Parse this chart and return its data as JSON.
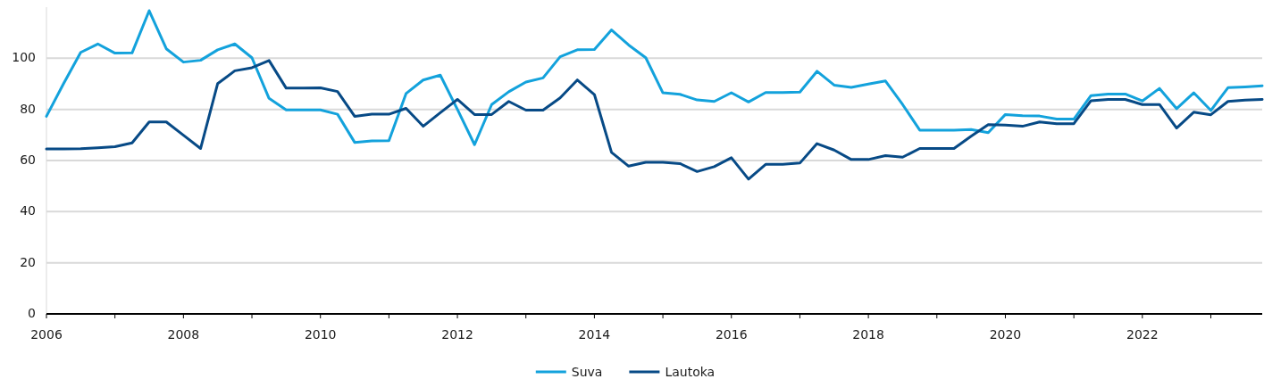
{
  "chart_data": {
    "type": "line",
    "x": [
      2006,
      2006.25,
      2006.5,
      2006.75,
      2007,
      2007.25,
      2007.5,
      2007.75,
      2008,
      2008.25,
      2008.5,
      2008.75,
      2009,
      2009.25,
      2009.5,
      2009.75,
      2010,
      2010.25,
      2010.5,
      2010.75,
      2011,
      2011.25,
      2011.5,
      2011.75,
      2012,
      2012.25,
      2012.5,
      2012.75,
      2013,
      2013.25,
      2013.5,
      2013.75,
      2014,
      2014.25,
      2014.5,
      2014.75,
      2015,
      2015.25,
      2015.5,
      2015.75,
      2016,
      2016.25,
      2016.5,
      2016.75,
      2017,
      2017.25,
      2017.5,
      2017.75,
      2018,
      2018.25,
      2018.5,
      2018.75,
      2019,
      2019.25,
      2019.5,
      2019.75,
      2020,
      2020.25,
      2020.5,
      2020.75,
      2021,
      2021.25,
      2021.5,
      2021.75,
      2022,
      2022.25,
      2022.5,
      2022.75,
      2023,
      2023.25,
      2023.5,
      2023.75
    ],
    "xlim": [
      2006,
      2023.75
    ],
    "xticks": [
      2006,
      {
        "value": 2007,
        "label": null
      },
      2008,
      {
        "value": 2009,
        "label": null
      },
      2010,
      {
        "value": 2011,
        "label": null
      },
      2012,
      {
        "value": 2013,
        "label": null
      },
      2014,
      {
        "value": 2015,
        "label": null
      },
      2016,
      {
        "value": 2017,
        "label": null
      },
      2018,
      {
        "value": 2019,
        "label": null
      },
      2020,
      {
        "value": 2021,
        "label": null
      },
      2022,
      {
        "value": 2023,
        "label": null
      }
    ],
    "ylim": [
      0,
      120
    ],
    "yticks": [
      0,
      20,
      40,
      60,
      80,
      100
    ],
    "grid": "y",
    "legend": "bottom",
    "series": [
      {
        "name": "Suva",
        "color": "#13a2dc",
        "values": [
          77.3,
          90.1,
          102.3,
          105.6,
          102.0,
          102.1,
          118.6,
          103.7,
          98.5,
          99.2,
          103.3,
          105.6,
          100.2,
          84.3,
          79.8,
          79.8,
          79.8,
          78.1,
          67.1,
          67.7,
          67.8,
          86.2,
          91.5,
          93.4,
          80.0,
          66.2,
          81.9,
          86.9,
          90.7,
          92.3,
          100.6,
          103.3,
          103.4,
          111.1,
          105.2,
          100.2,
          86.5,
          85.9,
          83.7,
          83.1,
          86.5,
          82.9,
          86.6,
          86.6,
          86.8,
          94.9,
          89.5,
          88.6,
          89.9,
          91.1,
          81.9,
          71.9,
          71.9,
          71.9,
          72.1,
          70.9,
          78.0,
          77.5,
          77.4,
          76.2,
          76.2,
          85.4,
          86.0,
          86.0,
          83.3,
          88.2,
          80.3,
          86.5,
          79.6,
          88.5,
          88.8,
          89.2
        ]
      },
      {
        "name": "Lautoka",
        "color": "#074a86",
        "values": [
          64.5,
          64.5,
          64.6,
          65.0,
          65.4,
          66.9,
          75.1,
          75.1,
          69.9,
          64.7,
          90.1,
          95.1,
          96.3,
          99.1,
          88.3,
          88.3,
          88.4,
          87.0,
          77.3,
          78.1,
          78.1,
          80.4,
          73.4,
          78.7,
          83.9,
          78.0,
          78.0,
          83.1,
          79.7,
          79.7,
          84.5,
          91.5,
          85.8,
          63.2,
          57.8,
          59.3,
          59.3,
          58.8,
          55.7,
          57.6,
          61.1,
          52.7,
          58.5,
          58.5,
          59.0,
          66.6,
          64.1,
          60.4,
          60.4,
          61.9,
          61.3,
          64.7,
          64.7,
          64.7,
          69.5,
          74.0,
          73.9,
          73.4,
          75.1,
          74.4,
          74.4,
          83.4,
          83.9,
          83.9,
          81.9,
          81.9,
          72.7,
          78.9,
          77.9,
          83.1,
          83.6,
          83.9
        ]
      }
    ]
  }
}
